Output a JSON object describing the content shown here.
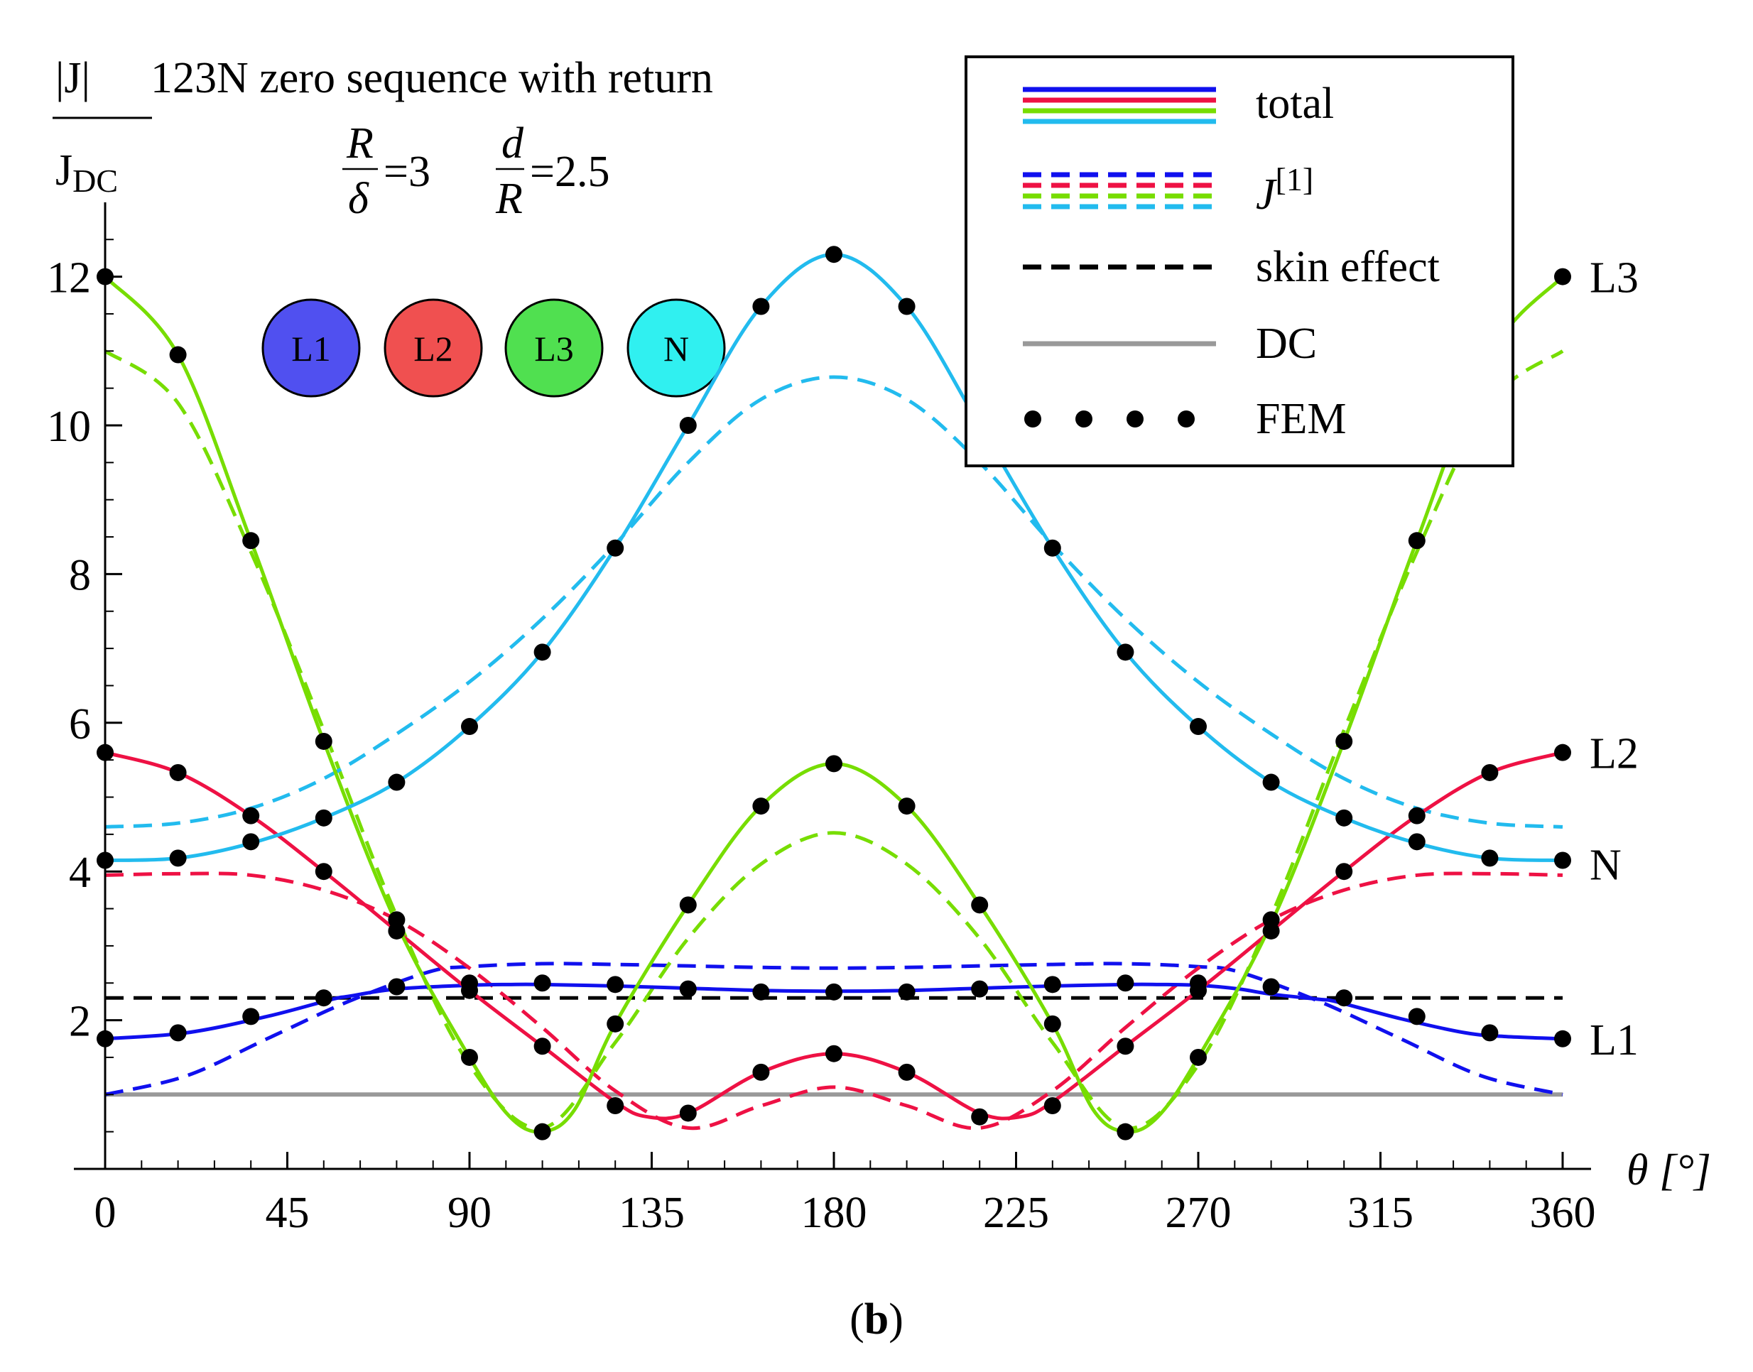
{
  "chart_data": {
    "type": "line",
    "title": "|J|123N zero sequence with return",
    "title_prefix": "|J|",
    "title_suffix": "123N zero sequence with return",
    "ylabel_num": "|J|",
    "ylabel_den": "J",
    "ylabel_den_sub": "DC",
    "params": {
      "r1_num": "R",
      "r1_den": "δ",
      "r1_val": "=3",
      "r2_num": "d",
      "r2_den": "R",
      "r2_val": "=2.5"
    },
    "xlabel": "θ [°]",
    "caption_open": "(",
    "caption": "b",
    "caption_close": ")",
    "xlim": [
      0,
      360
    ],
    "ylim": [
      0,
      13
    ],
    "x_ticks": [
      0,
      45,
      90,
      135,
      180,
      225,
      270,
      315,
      360
    ],
    "y_ticks": [
      2,
      4,
      6,
      8,
      10,
      12
    ],
    "x_tick_labels": [
      "0",
      "45",
      "90",
      "135",
      "180",
      "225",
      "270",
      "315",
      "360"
    ],
    "y_tick_labels": [
      "2",
      "4",
      "6",
      "8",
      "10",
      "12"
    ],
    "conductors": [
      {
        "label": "L1",
        "color": "#5050f0"
      },
      {
        "label": "L2",
        "color": "#f05050"
      },
      {
        "label": "L3",
        "color": "#50e050"
      },
      {
        "label": "N",
        "color": "#30f0f0"
      }
    ],
    "curve_labels": [
      {
        "label": "L3",
        "y": 12.0
      },
      {
        "label": "L2",
        "y": 5.6
      },
      {
        "label": "N",
        "y": 4.1
      },
      {
        "label": "L1",
        "y": 1.75
      }
    ],
    "colors": {
      "L1": "#1010ee",
      "L2": "#ee1144",
      "L3": "#77dd00",
      "N": "#22bbee",
      "skin": "#000000",
      "DC": "#999999"
    },
    "series": [
      {
        "name": "L1 total",
        "color": "#1010ee",
        "style": "solid",
        "x": [
          0,
          20,
          40,
          56,
          60,
          72,
          90,
          100,
          108,
          126,
          144,
          162,
          180,
          198,
          216,
          234,
          252,
          260,
          270,
          280,
          288,
          300,
          304,
          320,
          336,
          346,
          360
        ],
        "y": [
          1.75,
          1.83,
          2.05,
          2.28,
          2.32,
          2.42,
          2.47,
          2.48,
          2.48,
          2.46,
          2.43,
          2.4,
          2.39,
          2.4,
          2.43,
          2.46,
          2.48,
          2.48,
          2.47,
          2.42,
          2.35,
          2.28,
          2.25,
          2.02,
          1.83,
          1.78,
          1.75
        ]
      },
      {
        "name": "L2 total",
        "color": "#ee1144",
        "style": "solid",
        "x": [
          0,
          18,
          36,
          54,
          72,
          90,
          108,
          126,
          134,
          144,
          162,
          180,
          198,
          216,
          226,
          234,
          252,
          270,
          288,
          306,
          324,
          342,
          360
        ],
        "y": [
          5.6,
          5.33,
          4.75,
          4.0,
          3.2,
          2.4,
          1.65,
          0.9,
          0.7,
          0.75,
          1.3,
          1.55,
          1.3,
          0.75,
          0.7,
          0.9,
          1.65,
          2.4,
          3.2,
          4.0,
          4.75,
          5.33,
          5.6
        ]
      },
      {
        "name": "L3 total",
        "color": "#77dd00",
        "style": "solid",
        "x": [
          0,
          18,
          36,
          54,
          72,
          90,
          100,
          108,
          116,
          126,
          144,
          162,
          180,
          198,
          216,
          234,
          244,
          252,
          260,
          270,
          288,
          306,
          324,
          342,
          360
        ],
        "y": [
          12.0,
          10.95,
          8.45,
          5.75,
          3.3,
          1.5,
          0.7,
          0.5,
          0.8,
          1.95,
          3.55,
          4.88,
          5.45,
          4.88,
          3.55,
          1.95,
          0.8,
          0.5,
          0.7,
          1.5,
          3.3,
          5.75,
          8.45,
          10.95,
          12.0
        ]
      },
      {
        "name": "N total",
        "color": "#22bbee",
        "style": "solid",
        "x": [
          0,
          18,
          36,
          54,
          72,
          90,
          108,
          126,
          144,
          162,
          180,
          198,
          216,
          234,
          252,
          270,
          288,
          306,
          324,
          342,
          360
        ],
        "y": [
          4.15,
          4.18,
          4.38,
          4.72,
          5.2,
          5.95,
          6.95,
          8.35,
          10.0,
          11.6,
          12.3,
          11.6,
          10.0,
          8.35,
          6.95,
          5.95,
          5.2,
          4.72,
          4.38,
          4.18,
          4.15
        ]
      },
      {
        "name": "L1 J[1]",
        "color": "#1010ee",
        "style": "dashed",
        "x": [
          0,
          20,
          40,
          60,
          80,
          90,
          108,
          126,
          144,
          162,
          180,
          198,
          216,
          234,
          252,
          270,
          280,
          300,
          320,
          340,
          360
        ],
        "y": [
          1.0,
          1.25,
          1.75,
          2.25,
          2.65,
          2.72,
          2.76,
          2.75,
          2.73,
          2.71,
          2.7,
          2.71,
          2.73,
          2.75,
          2.76,
          2.72,
          2.65,
          2.25,
          1.75,
          1.25,
          1.0
        ]
      },
      {
        "name": "L2 J[1]",
        "color": "#ee1144",
        "style": "dashed",
        "x": [
          0,
          18,
          36,
          54,
          72,
          90,
          108,
          126,
          144,
          162,
          180,
          198,
          216,
          234,
          252,
          270,
          288,
          306,
          324,
          342,
          360
        ],
        "y": [
          3.95,
          3.97,
          3.95,
          3.75,
          3.35,
          2.7,
          1.9,
          1.05,
          0.55,
          0.85,
          1.1,
          0.85,
          0.55,
          1.05,
          1.9,
          2.7,
          3.35,
          3.75,
          3.95,
          3.97,
          3.95
        ]
      },
      {
        "name": "L3 J[1]",
        "color": "#77dd00",
        "style": "dashed",
        "x": [
          0,
          18,
          36,
          54,
          72,
          90,
          108,
          126,
          144,
          162,
          180,
          198,
          216,
          234,
          252,
          270,
          288,
          306,
          324,
          342,
          360
        ],
        "y": [
          11.0,
          10.3,
          8.3,
          5.9,
          3.4,
          1.4,
          0.55,
          1.7,
          3.1,
          4.1,
          4.52,
          4.1,
          3.1,
          1.7,
          0.55,
          1.4,
          3.4,
          5.9,
          8.3,
          10.3,
          11.0
        ]
      },
      {
        "name": "N J[1]",
        "color": "#22bbee",
        "style": "dashed",
        "x": [
          0,
          18,
          36,
          54,
          72,
          90,
          108,
          126,
          144,
          162,
          180,
          198,
          216,
          234,
          252,
          270,
          288,
          306,
          324,
          342,
          360
        ],
        "y": [
          4.6,
          4.65,
          4.85,
          5.25,
          5.85,
          6.55,
          7.4,
          8.4,
          9.5,
          10.35,
          10.65,
          10.35,
          9.5,
          8.4,
          7.4,
          6.55,
          5.85,
          5.25,
          4.85,
          4.65,
          4.6
        ]
      },
      {
        "name": "skin effect",
        "color": "#000000",
        "style": "dashed",
        "x": [
          0,
          360
        ],
        "y": [
          2.3,
          2.3
        ]
      },
      {
        "name": "DC",
        "color": "#999999",
        "style": "solid",
        "x": [
          0,
          360
        ],
        "y": [
          1.0,
          1.0
        ]
      }
    ],
    "fem_points": [
      {
        "name": "L1",
        "x": [
          0,
          18,
          36,
          54,
          72,
          90,
          108,
          126,
          144,
          162,
          180,
          198,
          216,
          234,
          252,
          270,
          288,
          306,
          324,
          342,
          360
        ],
        "y": [
          1.75,
          1.83,
          2.05,
          2.3,
          2.45,
          2.5,
          2.5,
          2.48,
          2.42,
          2.38,
          2.38,
          2.38,
          2.42,
          2.48,
          2.5,
          2.5,
          2.45,
          2.3,
          2.05,
          1.83,
          1.75
        ]
      },
      {
        "name": "L2",
        "x": [
          0,
          18,
          36,
          54,
          72,
          90,
          108,
          126,
          144,
          162,
          180,
          198,
          216,
          234,
          252,
          270,
          288,
          306,
          324,
          342,
          360
        ],
        "y": [
          5.6,
          5.33,
          4.75,
          4.0,
          3.2,
          2.4,
          1.65,
          0.85,
          0.75,
          1.3,
          1.55,
          1.3,
          0.7,
          0.85,
          1.65,
          2.4,
          3.2,
          4.0,
          4.75,
          5.33,
          5.6
        ]
      },
      {
        "name": "L3",
        "x": [
          0,
          18,
          36,
          54,
          72,
          90,
          108,
          126,
          144,
          162,
          180,
          198,
          216,
          234,
          252,
          270,
          288,
          306,
          324,
          342,
          360
        ],
        "y": [
          12.0,
          10.95,
          8.45,
          5.75,
          3.35,
          1.5,
          0.5,
          1.95,
          3.55,
          4.88,
          5.45,
          4.88,
          3.55,
          1.95,
          0.5,
          1.5,
          3.35,
          5.75,
          8.45,
          10.95,
          12.0
        ]
      },
      {
        "name": "N",
        "x": [
          0,
          18,
          36,
          54,
          72,
          90,
          108,
          126,
          144,
          162,
          180,
          198,
          216,
          234,
          252,
          270,
          288,
          306,
          324,
          342,
          360
        ],
        "y": [
          4.15,
          4.18,
          4.4,
          4.72,
          5.2,
          5.95,
          6.95,
          8.35,
          10.0,
          11.6,
          12.3,
          11.6,
          10.0,
          8.35,
          6.95,
          5.95,
          5.2,
          4.72,
          4.4,
          4.18,
          4.15
        ]
      }
    ],
    "legend": {
      "position": "top-right",
      "entries": [
        {
          "label": "total",
          "style": "solid-multi"
        },
        {
          "label": "J",
          "sup": "[1]",
          "style": "dashed-multi"
        },
        {
          "label": "skin effect",
          "style": "dashed-black"
        },
        {
          "label": "DC",
          "style": "solid-gray"
        },
        {
          "label": "FEM",
          "style": "dots"
        }
      ]
    }
  }
}
